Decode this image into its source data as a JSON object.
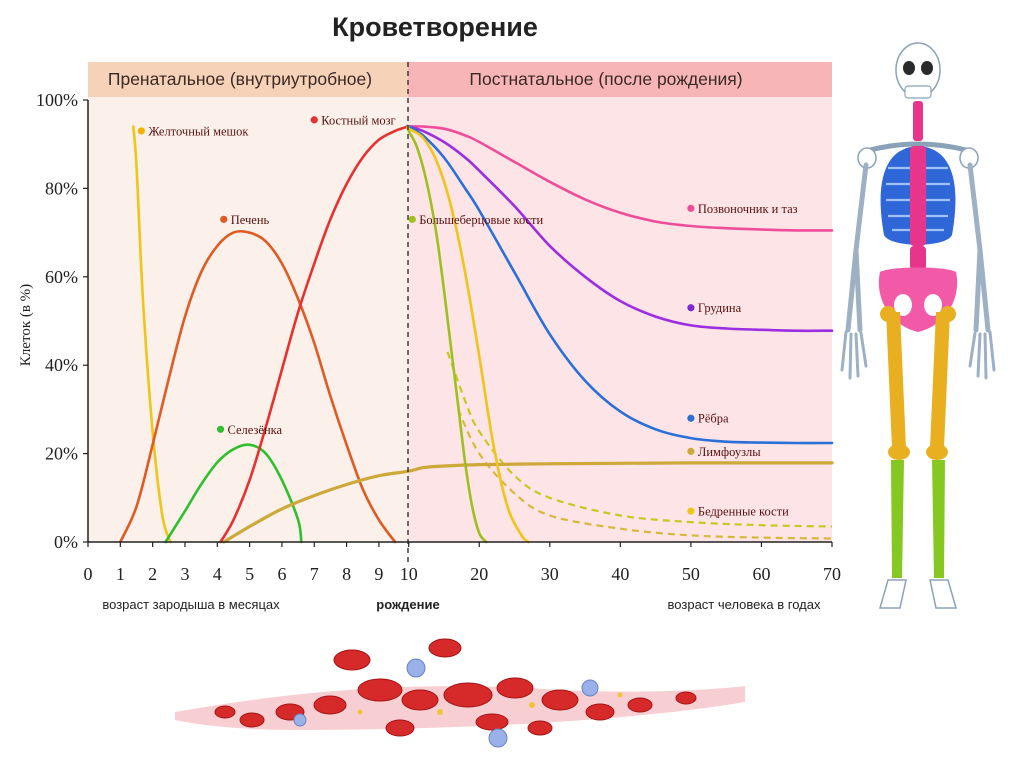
{
  "slide": {
    "title": "Кроветворение"
  },
  "chart_data": {
    "type": "line",
    "title": "Кроветворение",
    "ylabel": "Клеток (в %)",
    "ylim": [
      0,
      100
    ],
    "y_ticks": [
      "0%",
      "20%",
      "40%",
      "60%",
      "80%",
      "100%"
    ],
    "y_tick_values": [
      0,
      20,
      40,
      60,
      80,
      100
    ],
    "x_ticks": [
      "0",
      "1",
      "2",
      "3",
      "4",
      "5",
      "6",
      "7",
      "8",
      "9",
      "10",
      "20",
      "30",
      "40",
      "50",
      "60",
      "70"
    ],
    "x_tick_positions": [
      0,
      1,
      2,
      3,
      4,
      5,
      6,
      7,
      8,
      9,
      10,
      20,
      30,
      40,
      50,
      60,
      70
    ],
    "periods": [
      {
        "label": "Пренатальное (внутриутробное)",
        "color": "#f6d2b8",
        "bg": "#fbf1ea"
      },
      {
        "label": "Постнатальное (после рождения)",
        "color": "#f8b5b8",
        "bg": "#fde4e6"
      }
    ],
    "birth_label": "рождение",
    "x_caption_left": "возраст зародыша в месяцах",
    "x_caption_right": "возраст человека в годах",
    "grid": false,
    "series": [
      {
        "name": "Желточный мешок",
        "color": "#f0c419",
        "dot": "#f0b400",
        "x": [
          1.4,
          1.5,
          1.7,
          2.0,
          2.3,
          2.55
        ],
        "y": [
          94,
          85,
          55,
          25,
          6,
          0
        ]
      },
      {
        "name": "Печень",
        "color": "#e05a24",
        "dot": "#e05a24",
        "x": [
          1.0,
          1.5,
          2.0,
          2.5,
          3.0,
          3.5,
          4.0,
          4.5,
          5.0,
          5.5,
          6.0,
          6.5,
          7.0,
          7.5,
          8.0,
          8.5,
          9.0,
          9.5
        ],
        "y": [
          0,
          8,
          22,
          37,
          51,
          61,
          67,
          70,
          70,
          68,
          63,
          55,
          45,
          33,
          22,
          12,
          5,
          0
        ]
      },
      {
        "name": "Селезёнка",
        "color": "#2ec02e",
        "dot": "#2ec02e",
        "x": [
          2.4,
          3.0,
          3.5,
          4.0,
          4.5,
          5.0,
          5.5,
          6.0,
          6.5,
          6.6
        ],
        "y": [
          0,
          7,
          13,
          18,
          21,
          22,
          20,
          14,
          5,
          0
        ]
      },
      {
        "name": "Костный мозг",
        "color": "#e83030",
        "dot": "#e83030",
        "x": [
          4.1,
          4.5,
          5.0,
          5.5,
          6.0,
          6.5,
          7.0,
          7.5,
          8.0,
          8.5,
          9.0,
          9.5,
          9.9
        ],
        "y": [
          0,
          5,
          14,
          26,
          39,
          52,
          63,
          73,
          81,
          87,
          91,
          93,
          94
        ]
      },
      {
        "name": "Позвоночник и таз",
        "color": "#ee4d9a",
        "dot": "#ee4d9a",
        "x": [
          9.9,
          10,
          12,
          15,
          18,
          20,
          25,
          30,
          35,
          40,
          45,
          50,
          55,
          60,
          65,
          70
        ],
        "y": [
          94,
          94,
          94,
          93.5,
          92,
          90.5,
          86,
          81.5,
          77.5,
          74.5,
          72.5,
          71.5,
          71,
          70.7,
          70.5,
          70.5
        ]
      },
      {
        "name": "Грудина",
        "color": "#9b2ee0",
        "dot": "#7d2ad0",
        "x": [
          9.9,
          10,
          12,
          15,
          18,
          20,
          25,
          30,
          35,
          40,
          45,
          50,
          55,
          60,
          65,
          70
        ],
        "y": [
          94,
          94,
          93,
          90.5,
          87,
          84,
          76,
          67,
          60,
          54.5,
          51,
          49,
          48.3,
          48,
          47.8,
          47.8
        ]
      },
      {
        "name": "Рёбра",
        "color": "#2b6fd8",
        "dot": "#2b6fd8",
        "x": [
          9.9,
          10,
          12,
          15,
          18,
          20,
          25,
          30,
          35,
          40,
          45,
          50,
          55,
          60,
          65,
          70
        ],
        "y": [
          94,
          94,
          92,
          87,
          80,
          75,
          61,
          47,
          36.5,
          29.5,
          25.5,
          23.5,
          22.7,
          22.5,
          22.4,
          22.4
        ]
      },
      {
        "name": "Лимфоузлы",
        "color": "#cda93a",
        "dot": "#cda93a",
        "x": [
          4.2,
          5.0,
          6.0,
          7.0,
          8.0,
          9.0,
          9.9,
          12,
          15,
          20,
          30,
          40,
          50,
          60,
          70
        ],
        "y": [
          0,
          3.5,
          7.5,
          10.5,
          13,
          15,
          16,
          16.8,
          17.2,
          17.5,
          17.7,
          17.8,
          17.9,
          17.9,
          17.9
        ]
      },
      {
        "name": "Большеберцовые кости",
        "color": "#9dc01e",
        "dot": "#9dc01e",
        "x": [
          9.9,
          10,
          11,
          12,
          13,
          14,
          15,
          16,
          17,
          18,
          19,
          20,
          21
        ],
        "y": [
          94,
          93,
          90,
          85,
          78,
          69,
          57,
          44,
          31,
          18,
          8,
          2,
          0
        ]
      },
      {
        "name": "Бедренные кости",
        "color": "#f0c419",
        "dot": "#f0c419",
        "x": [
          9.9,
          10,
          12,
          14,
          16,
          18,
          20,
          22,
          24,
          26,
          27
        ],
        "y": [
          94,
          93.5,
          91.5,
          86,
          76,
          61,
          42,
          22,
          8,
          1.5,
          0
        ]
      }
    ],
    "dashed": [
      {
        "color": "#c8c820",
        "x": [
          15.5,
          18,
          20,
          25,
          30,
          40,
          50,
          60,
          70
        ],
        "y": [
          43,
          32,
          25,
          15,
          10,
          6,
          4.5,
          3.8,
          3.5
        ]
      },
      {
        "color": "#d8b83a",
        "x": [
          17,
          20,
          25,
          30,
          40,
          50,
          60,
          70
        ],
        "y": [
          30,
          20,
          11,
          6,
          3,
          1.5,
          1,
          0.8
        ]
      }
    ],
    "labels": [
      {
        "series": "Желточный мешок",
        "x": 1.65,
        "y": 93
      },
      {
        "series": "Печень",
        "x": 4.2,
        "y": 73
      },
      {
        "series": "Селезёнка",
        "x": 4.1,
        "y": 25.5
      },
      {
        "series": "Костный мозг",
        "x": 7.0,
        "y": 95.5
      },
      {
        "series": "Большеберцовые кости",
        "x": 10.5,
        "y": 73
      },
      {
        "series": "Позвоночник и таз",
        "x": 50,
        "y": 75.5
      },
      {
        "series": "Грудина",
        "x": 50,
        "y": 53
      },
      {
        "series": "Рёбра",
        "x": 50,
        "y": 28
      },
      {
        "series": "Лимфоузлы",
        "x": 50,
        "y": 20.5
      },
      {
        "series": "Бедренные кости",
        "x": 50,
        "y": 7
      }
    ]
  }
}
